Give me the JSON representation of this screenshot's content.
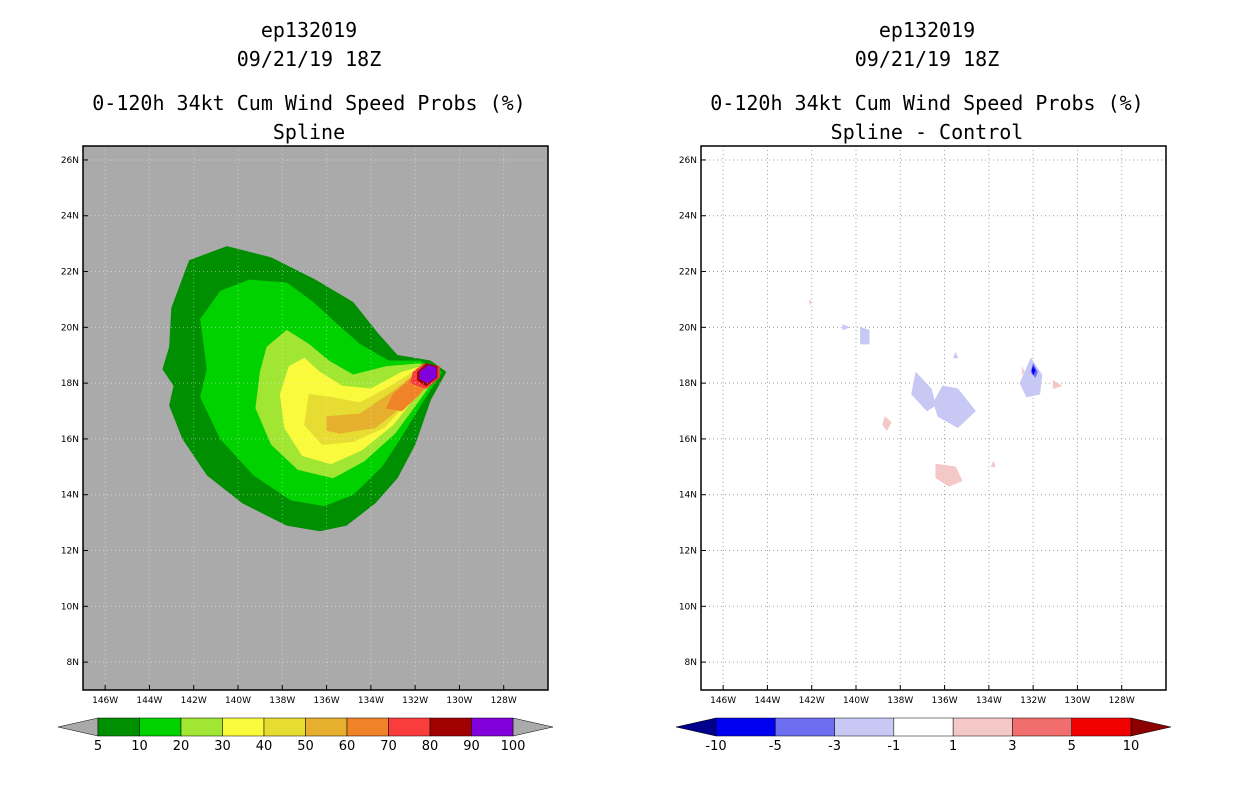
{
  "chart_data": [
    {
      "type": "heatmap",
      "storm_id": "ep132019",
      "datetime": "09/21/19 18Z",
      "title": "0-120h 34kt Cum Wind Speed Probs (%)",
      "subtitle": "Spline",
      "xlim": [
        -147,
        -126
      ],
      "ylim": [
        7,
        26.5
      ],
      "x_ticks": [
        -146,
        -144,
        -142,
        -140,
        -138,
        -136,
        -134,
        -132,
        -130,
        -128
      ],
      "x_tick_labels": [
        "146W",
        "144W",
        "142W",
        "140W",
        "138W",
        "136W",
        "134W",
        "132W",
        "130W",
        "128W"
      ],
      "y_ticks": [
        8,
        10,
        12,
        14,
        16,
        18,
        20,
        22,
        24,
        26
      ],
      "y_tick_labels": [
        "8N",
        "10N",
        "12N",
        "14N",
        "16N",
        "18N",
        "20N",
        "22N",
        "24N",
        "26N"
      ],
      "background": "#aaaaaa",
      "colorbar": {
        "labels": [
          "5",
          "10",
          "20",
          "30",
          "40",
          "50",
          "60",
          "70",
          "80",
          "90",
          "100"
        ],
        "colors": [
          "#008f00",
          "#00d200",
          "#a0e632",
          "#fafa3c",
          "#e6dc32",
          "#e6af2d",
          "#f08228",
          "#fa3c3c",
          "#a00000",
          "#8200dc"
        ],
        "under_color": "#aaaaaa",
        "over_color": "#aaaaaa"
      },
      "contours": [
        {
          "level": 5,
          "color": "#008f00",
          "points": [
            [
              -142.2,
              22.4
            ],
            [
              -140.5,
              22.9
            ],
            [
              -138.5,
              22.5
            ],
            [
              -136.5,
              21.7
            ],
            [
              -134.8,
              20.9
            ],
            [
              -133.7,
              19.8
            ],
            [
              -132.8,
              19.0
            ],
            [
              -131.3,
              18.8
            ],
            [
              -130.6,
              18.4
            ],
            [
              -131.3,
              17.4
            ],
            [
              -132,
              15.8
            ],
            [
              -132.8,
              14.6
            ],
            [
              -133.8,
              13.7
            ],
            [
              -135.1,
              12.9
            ],
            [
              -136.3,
              12.7
            ],
            [
              -137.8,
              12.9
            ],
            [
              -139.8,
              13.7
            ],
            [
              -141.4,
              14.7
            ],
            [
              -142.5,
              16.0
            ],
            [
              -143.1,
              17.2
            ],
            [
              -142.9,
              17.9
            ],
            [
              -143.4,
              18.5
            ],
            [
              -143.1,
              19.3
            ],
            [
              -143.0,
              20.7
            ]
          ]
        },
        {
          "level": 10,
          "color": "#00d200",
          "points": [
            [
              -141.7,
              20.3
            ],
            [
              -140.8,
              21.3
            ],
            [
              -139.5,
              21.7
            ],
            [
              -137.8,
              21.6
            ],
            [
              -136.6,
              20.9
            ],
            [
              -135.5,
              20.1
            ],
            [
              -134.5,
              19.4
            ],
            [
              -133.2,
              18.8
            ],
            [
              -131.8,
              18.8
            ],
            [
              -130.8,
              18.4
            ],
            [
              -131.6,
              17.4
            ],
            [
              -132.6,
              16.1
            ],
            [
              -133.5,
              15.0
            ],
            [
              -134.8,
              14.0
            ],
            [
              -136.1,
              13.6
            ],
            [
              -137.6,
              13.8
            ],
            [
              -139.3,
              14.7
            ],
            [
              -140.8,
              16.0
            ],
            [
              -141.7,
              17.5
            ],
            [
              -141.4,
              18.5
            ]
          ]
        },
        {
          "level": 20,
          "color": "#a0e632",
          "points": [
            [
              -138.7,
              19.3
            ],
            [
              -137.8,
              19.9
            ],
            [
              -136.8,
              19.4
            ],
            [
              -135.9,
              18.8
            ],
            [
              -134.8,
              18.3
            ],
            [
              -133.3,
              18.6
            ],
            [
              -131.8,
              18.7
            ],
            [
              -130.9,
              18.4
            ],
            [
              -131.8,
              17.4
            ],
            [
              -132.9,
              16.2
            ],
            [
              -134.3,
              15.2
            ],
            [
              -135.7,
              14.6
            ],
            [
              -137.3,
              14.9
            ],
            [
              -138.5,
              15.8
            ],
            [
              -139.2,
              17.1
            ],
            [
              -139.0,
              18.4
            ]
          ]
        },
        {
          "level": 30,
          "color": "#fafa3c",
          "points": [
            [
              -137.7,
              18.6
            ],
            [
              -137.0,
              18.9
            ],
            [
              -136.3,
              18.4
            ],
            [
              -135.3,
              17.9
            ],
            [
              -134.0,
              17.8
            ],
            [
              -132.6,
              18.4
            ],
            [
              -131.7,
              18.6
            ],
            [
              -131.0,
              18.4
            ],
            [
              -131.9,
              17.6
            ],
            [
              -133.0,
              16.5
            ],
            [
              -134.4,
              15.6
            ],
            [
              -135.8,
              15.1
            ],
            [
              -137.1,
              15.4
            ],
            [
              -137.9,
              16.4
            ],
            [
              -138.1,
              17.6
            ]
          ]
        },
        {
          "level": 40,
          "color": "#e6dc32",
          "points": [
            [
              -136.8,
              17.6
            ],
            [
              -135.8,
              17.5
            ],
            [
              -134.5,
              17.3
            ],
            [
              -133.1,
              17.9
            ],
            [
              -131.9,
              18.5
            ],
            [
              -131.0,
              18.4
            ],
            [
              -132.0,
              17.6
            ],
            [
              -133.4,
              16.4
            ],
            [
              -134.8,
              15.9
            ],
            [
              -136.2,
              15.8
            ],
            [
              -137.0,
              16.5
            ]
          ]
        },
        {
          "level": 50,
          "color": "#e6af2d",
          "points": [
            [
              -136.0,
              16.8
            ],
            [
              -134.5,
              16.9
            ],
            [
              -133.0,
              17.7
            ],
            [
              -131.9,
              18.4
            ],
            [
              -131.0,
              18.4
            ],
            [
              -132.2,
              17.4
            ],
            [
              -133.8,
              16.4
            ],
            [
              -135.4,
              16.2
            ],
            [
              -136.0,
              16.3
            ]
          ]
        },
        {
          "level": 60,
          "color": "#f08228",
          "points": [
            [
              -133.0,
              17.6
            ],
            [
              -132.0,
              18.3
            ],
            [
              -131.0,
              18.4
            ],
            [
              -131.8,
              17.6
            ],
            [
              -132.6,
              17.0
            ],
            [
              -133.3,
              17.1
            ]
          ]
        },
        {
          "level": 70,
          "color": "#fa3c3c",
          "points": [
            [
              -132.1,
              18.4
            ],
            [
              -131.6,
              18.7
            ],
            [
              -130.9,
              18.6
            ],
            [
              -130.9,
              18.2
            ],
            [
              -131.5,
              17.8
            ],
            [
              -132.2,
              18.0
            ]
          ]
        },
        {
          "level": 80,
          "color": "#a00000",
          "points": [
            [
              -131.9,
              18.4
            ],
            [
              -131.5,
              18.7
            ],
            [
              -131.0,
              18.6
            ],
            [
              -131.0,
              18.2
            ],
            [
              -131.5,
              17.9
            ],
            [
              -131.9,
              18.1
            ]
          ]
        },
        {
          "level": 90,
          "color": "#8200dc",
          "points": [
            [
              -131.8,
              18.4
            ],
            [
              -131.4,
              18.65
            ],
            [
              -131.05,
              18.55
            ],
            [
              -131.05,
              18.2
            ],
            [
              -131.45,
              18.0
            ],
            [
              -131.8,
              18.15
            ]
          ]
        }
      ]
    },
    {
      "type": "heatmap",
      "storm_id": "ep132019",
      "datetime": "09/21/19 18Z",
      "title": "0-120h 34kt Cum Wind Speed Probs (%)",
      "subtitle": "Spline - Control",
      "xlim": [
        -147,
        -126
      ],
      "ylim": [
        7,
        26.5
      ],
      "x_ticks": [
        -146,
        -144,
        -142,
        -140,
        -138,
        -136,
        -134,
        -132,
        -130,
        -128
      ],
      "x_tick_labels": [
        "146W",
        "144W",
        "142W",
        "140W",
        "138W",
        "136W",
        "134W",
        "132W",
        "130W",
        "128W"
      ],
      "y_ticks": [
        8,
        10,
        12,
        14,
        16,
        18,
        20,
        22,
        24,
        26
      ],
      "y_tick_labels": [
        "8N",
        "10N",
        "12N",
        "14N",
        "16N",
        "18N",
        "20N",
        "22N",
        "24N",
        "26N"
      ],
      "grid": true,
      "background": "#ffffff",
      "colorbar": {
        "labels": [
          "-10",
          "-5",
          "-3",
          "-1",
          "1",
          "3",
          "5",
          "10"
        ],
        "colors": [
          "#0000f0",
          "#6e6ef0",
          "#c8c8f5",
          "#ffffff",
          "#f5c8c8",
          "#f06e6e",
          "#f00000"
        ],
        "under_color": "#00008c",
        "over_color": "#8c0000"
      },
      "contours": [
        {
          "level": -3,
          "color": "#c8c8f5",
          "points": [
            [
              -137.3,
              18.4
            ],
            [
              -136.6,
              17.8
            ],
            [
              -136.4,
              17.2
            ],
            [
              -136.8,
              17.0
            ],
            [
              -137.5,
              17.6
            ]
          ]
        },
        {
          "level": -3,
          "color": "#c8c8f5",
          "points": [
            [
              -136.1,
              17.9
            ],
            [
              -135.4,
              17.8
            ],
            [
              -134.6,
              17.0
            ],
            [
              -135.4,
              16.4
            ],
            [
              -136.3,
              16.8
            ],
            [
              -136.5,
              17.3
            ]
          ]
        },
        {
          "level": -3,
          "color": "#c8c8f5",
          "points": [
            [
              -139.8,
              20.0
            ],
            [
              -139.4,
              19.9
            ],
            [
              -139.4,
              19.4
            ],
            [
              -139.8,
              19.4
            ]
          ]
        },
        {
          "level": -3,
          "color": "#c8c8f5",
          "points": [
            [
              -140.6,
              20.1
            ],
            [
              -140.3,
              20.0
            ],
            [
              -140.6,
              19.9
            ]
          ]
        },
        {
          "level": -3,
          "color": "#c8c8f5",
          "points": [
            [
              -135.5,
              19.1
            ],
            [
              -135.4,
              18.9
            ],
            [
              -135.6,
              18.9
            ]
          ]
        },
        {
          "level": -3,
          "color": "#c8c8f5",
          "points": [
            [
              -132.1,
              18.9
            ],
            [
              -131.6,
              18.3
            ],
            [
              -131.7,
              17.6
            ],
            [
              -132.3,
              17.5
            ],
            [
              -132.6,
              18.0
            ]
          ]
        },
        {
          "level": -5,
          "color": "#6e6ef0",
          "points": [
            [
              -132.0,
              18.7
            ],
            [
              -131.8,
              18.4
            ],
            [
              -131.9,
              18.2
            ],
            [
              -132.1,
              18.4
            ]
          ]
        },
        {
          "level": -10,
          "color": "#0000f0",
          "points": [
            [
              -132.0,
              18.6
            ],
            [
              -131.9,
              18.45
            ],
            [
              -132.0,
              18.3
            ],
            [
              -132.05,
              18.45
            ]
          ]
        },
        {
          "level": 1,
          "color": "#f5c8c8",
          "points": [
            [
              -136.4,
              15.1
            ],
            [
              -135.5,
              15.0
            ],
            [
              -135.2,
              14.5
            ],
            [
              -135.8,
              14.3
            ],
            [
              -136.4,
              14.6
            ]
          ]
        },
        {
          "level": 1,
          "color": "#f5c8c8",
          "points": [
            [
              -138.7,
              16.8
            ],
            [
              -138.4,
              16.6
            ],
            [
              -138.6,
              16.3
            ],
            [
              -138.8,
              16.5
            ]
          ]
        },
        {
          "level": 1,
          "color": "#f5c8c8",
          "points": [
            [
              -131.1,
              18.1
            ],
            [
              -130.7,
              17.9
            ],
            [
              -131.1,
              17.8
            ]
          ]
        },
        {
          "level": 1,
          "color": "#f5c8c8",
          "points": [
            [
              -133.8,
              15.2
            ],
            [
              -133.7,
              15.0
            ],
            [
              -133.9,
              15.0
            ]
          ]
        },
        {
          "level": 1,
          "color": "#f5c8c8",
          "points": [
            [
              -142.1,
              21.0
            ],
            [
              -142.0,
              20.9
            ],
            [
              -142.1,
              20.8
            ]
          ]
        },
        {
          "level": 1,
          "color": "#f5c8c8",
          "points": [
            [
              -132.5,
              18.6
            ],
            [
              -132.4,
              18.4
            ],
            [
              -132.5,
              18.3
            ]
          ]
        }
      ]
    }
  ]
}
